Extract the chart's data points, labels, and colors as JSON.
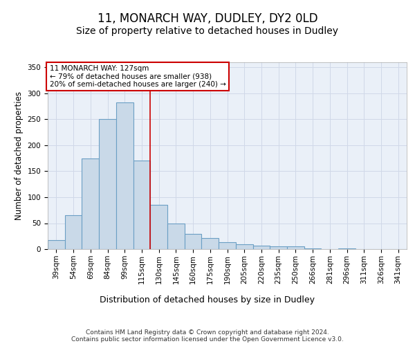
{
  "title_line1": "11, MONARCH WAY, DUDLEY, DY2 0LD",
  "title_line2": "Size of property relative to detached houses in Dudley",
  "xlabel": "Distribution of detached houses by size in Dudley",
  "ylabel": "Number of detached properties",
  "categories": [
    "39sqm",
    "54sqm",
    "69sqm",
    "84sqm",
    "99sqm",
    "115sqm",
    "130sqm",
    "145sqm",
    "160sqm",
    "175sqm",
    "190sqm",
    "205sqm",
    "220sqm",
    "235sqm",
    "250sqm",
    "266sqm",
    "281sqm",
    "296sqm",
    "311sqm",
    "326sqm",
    "341sqm"
  ],
  "values": [
    18,
    65,
    175,
    250,
    283,
    170,
    85,
    50,
    30,
    22,
    13,
    10,
    7,
    5,
    5,
    2,
    0,
    2,
    0,
    0,
    0
  ],
  "bar_color": "#c9d9e8",
  "bar_edge_color": "#6b9fc4",
  "vline_x": 6.0,
  "vline_color": "#cc0000",
  "annotation_text": "11 MONARCH WAY: 127sqm\n← 79% of detached houses are smaller (938)\n20% of semi-detached houses are larger (240) →",
  "annotation_box_color": "#ffffff",
  "annotation_box_edge_color": "#cc0000",
  "ylim": [
    0,
    360
  ],
  "yticks": [
    0,
    50,
    100,
    150,
    200,
    250,
    300,
    350
  ],
  "grid_color": "#d0d8e8",
  "bg_color": "#eaf0f8",
  "footer_text": "Contains HM Land Registry data © Crown copyright and database right 2024.\nContains public sector information licensed under the Open Government Licence v3.0.",
  "title_fontsize": 12,
  "subtitle_fontsize": 10,
  "xlabel_fontsize": 9,
  "ylabel_fontsize": 8.5,
  "tick_fontsize": 7.5,
  "annotation_fontsize": 7.5,
  "footer_fontsize": 6.5
}
